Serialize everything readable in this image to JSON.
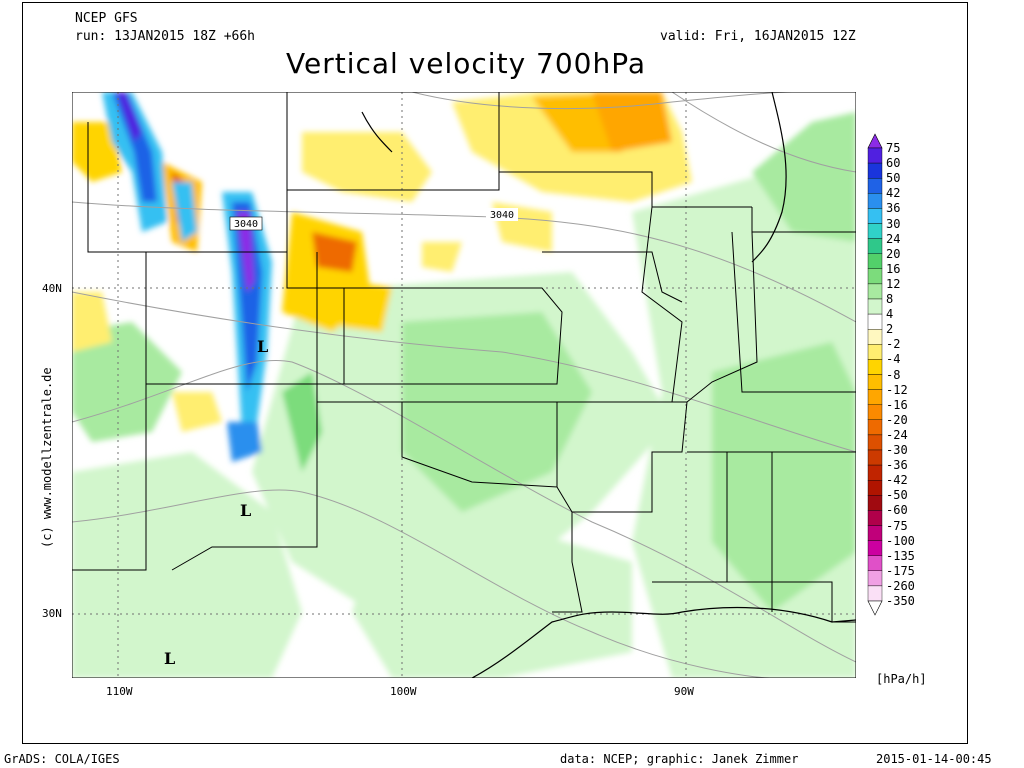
{
  "header": {
    "model": "NCEP GFS",
    "run": "run: 13JAN2015 18Z +66h",
    "valid": "valid: Fri, 16JAN2015 12Z",
    "title": "Vertical velocity 700hPa"
  },
  "side_credit": "(c) www.modellzentrale.de",
  "axes": {
    "lat_labels": [
      "40N",
      "30N"
    ],
    "lon_labels": [
      "110W",
      "100W",
      "90W"
    ]
  },
  "contour_labels": [
    "3040",
    "3040"
  ],
  "low_markers": [
    "L",
    "L",
    "L"
  ],
  "legend": {
    "unit": "[hPa/h]",
    "levels": [
      "75",
      "60",
      "50",
      "42",
      "36",
      "30",
      "24",
      "20",
      "16",
      "12",
      "8",
      "4",
      "2",
      "-2",
      "-4",
      "-8",
      "-12",
      "-16",
      "-20",
      "-24",
      "-30",
      "-36",
      "-42",
      "-50",
      "-60",
      "-75",
      "-100",
      "-135",
      "-175",
      "-260",
      "-350"
    ],
    "colors": [
      "#8c2ce6",
      "#5020e0",
      "#1a35dc",
      "#1f62e6",
      "#2a8fee",
      "#35c0f2",
      "#30d2c8",
      "#2fc88a",
      "#52d06a",
      "#7cdc7c",
      "#a8eaa0",
      "#d2f6cc",
      "#ffffff",
      "#fff8c0",
      "#ffee70",
      "#ffd400",
      "#ffbe00",
      "#ffa600",
      "#fb8a00",
      "#ee6a00",
      "#dd5000",
      "#cc3a00",
      "#c02400",
      "#b01400",
      "#a00a10",
      "#b0004a",
      "#c0007a",
      "#cc00a0",
      "#e050c8",
      "#f0a0e4",
      "#fae0f6"
    ]
  },
  "footer": {
    "left": "GrADS: COLA/IGES",
    "center": "data: NCEP; graphic: Janek Zimmer",
    "right": "2015-01-14-00:45"
  },
  "colors": {
    "background": "#ffffff",
    "border": "#000000",
    "gray_contour": "#a0a0a0"
  }
}
